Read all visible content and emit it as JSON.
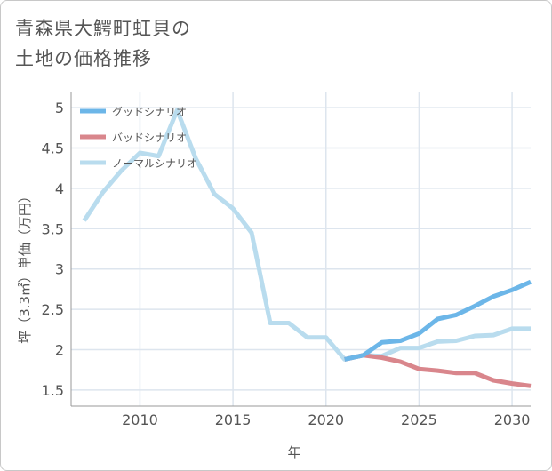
{
  "title_line1": "青森県大鰐町虹貝の",
  "title_line2": "土地の価格推移",
  "chart_data": {
    "type": "line",
    "xlabel": "年",
    "ylabel": "坪（3.3㎡）単価（万円）",
    "xlim": [
      2006.3,
      2031
    ],
    "ylim": [
      1.3,
      5.2
    ],
    "xticks": [
      2010,
      2015,
      2020,
      2025,
      2030
    ],
    "yticks": [
      1.5,
      2,
      2.5,
      3,
      3.5,
      4,
      4.5,
      5
    ],
    "ytick_labels": [
      "1.5",
      "2",
      "2.5",
      "3",
      "3.5",
      "4",
      "4.5",
      "5"
    ],
    "grid": true,
    "legend_position": "top-left",
    "series": [
      {
        "name": "グッドシナリオ",
        "color": "#6cb6e8",
        "x": [
          2021,
          2022,
          2023,
          2024,
          2025,
          2026,
          2027,
          2028,
          2029,
          2030,
          2031
        ],
        "y": [
          1.88,
          1.93,
          2.09,
          2.11,
          2.2,
          2.38,
          2.43,
          2.54,
          2.66,
          2.74,
          2.84
        ]
      },
      {
        "name": "バッドシナリオ",
        "color": "#d9868c",
        "x": [
          2021,
          2022,
          2023,
          2024,
          2025,
          2026,
          2027,
          2028,
          2029,
          2030,
          2031
        ],
        "y": [
          1.88,
          1.93,
          1.9,
          1.85,
          1.76,
          1.74,
          1.71,
          1.71,
          1.62,
          1.58,
          1.55
        ]
      },
      {
        "name": "ノーマルシナリオ",
        "color": "#b9dcee",
        "x": [
          2007,
          2008,
          2009,
          2010,
          2011,
          2012,
          2013,
          2014,
          2015,
          2016,
          2017,
          2018,
          2019,
          2020,
          2021,
          2022,
          2023,
          2024,
          2025,
          2026,
          2027,
          2028,
          2029,
          2030,
          2031
        ],
        "y": [
          3.6,
          3.95,
          4.22,
          4.44,
          4.4,
          4.97,
          4.37,
          3.93,
          3.75,
          3.45,
          2.33,
          2.33,
          2.15,
          2.15,
          1.88,
          1.93,
          1.92,
          2.02,
          2.02,
          2.1,
          2.11,
          2.17,
          2.18,
          2.26,
          2.26
        ]
      }
    ]
  }
}
